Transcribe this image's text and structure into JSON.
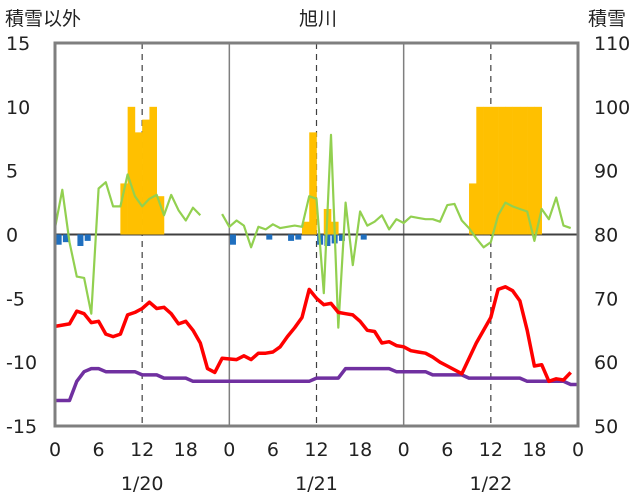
{
  "chart_data": {
    "type": "combo",
    "title": "旭川",
    "left_axis_label": "積雪以外",
    "right_axis_label": "積雪",
    "left_ylim": [
      -15,
      15
    ],
    "left_ticks": [
      "15",
      "10",
      "5",
      "0",
      "-5",
      "-10",
      "-15"
    ],
    "right_ylim": [
      50,
      110
    ],
    "right_ticks": [
      "110",
      "100",
      "90",
      "80",
      "70",
      "60",
      "50"
    ],
    "x_range_hours": [
      0,
      72
    ],
    "x_tick_labels": [
      "0",
      "6",
      "12",
      "18",
      "0",
      "6",
      "12",
      "18",
      "0",
      "6",
      "12",
      "18",
      "0"
    ],
    "date_labels": [
      {
        "hour": 12,
        "label": "1/20"
      },
      {
        "hour": 36,
        "label": "1/21"
      },
      {
        "hour": 60,
        "label": "1/22"
      }
    ],
    "grid": {
      "solid_day_lines": [
        24,
        48
      ],
      "dashed_noon_lines": [
        12,
        36,
        60
      ]
    },
    "colors": {
      "temperature": "#ff0000",
      "snowfall": "#ffc000",
      "precipitation": "#1f6fbf",
      "snow_depth": "#7030a0",
      "wind": "#92d050",
      "axis": "#7f7f7f",
      "zero_line": "#404040"
    },
    "snowfall_bars": [
      {
        "x": 9,
        "v": 4
      },
      {
        "x": 10,
        "v": 10
      },
      {
        "x": 11,
        "v": 8
      },
      {
        "x": 12,
        "v": 9
      },
      {
        "x": 13,
        "v": 10
      },
      {
        "x": 14,
        "v": 3
      },
      {
        "x": 34,
        "v": 1
      },
      {
        "x": 35,
        "v": 8
      },
      {
        "x": 37,
        "v": 2
      },
      {
        "x": 38,
        "v": 1
      },
      {
        "x": 57,
        "v": 4
      },
      {
        "x": 58,
        "v": 10
      },
      {
        "x": 59,
        "v": 10
      },
      {
        "x": 60,
        "v": 10
      },
      {
        "x": 61,
        "v": 10
      },
      {
        "x": 62,
        "v": 10
      },
      {
        "x": 63,
        "v": 10
      },
      {
        "x": 64,
        "v": 10
      },
      {
        "x": 65,
        "v": 10
      },
      {
        "x": 66,
        "v": 10
      }
    ],
    "precipitation_bars": [
      {
        "x": 0.5,
        "v": -0.8
      },
      {
        "x": 1.5,
        "v": -0.6
      },
      {
        "x": 3.5,
        "v": -0.9
      },
      {
        "x": 4.5,
        "v": -0.5
      },
      {
        "x": 24.5,
        "v": -0.8
      },
      {
        "x": 29.5,
        "v": -0.4
      },
      {
        "x": 32.5,
        "v": -0.5
      },
      {
        "x": 33.5,
        "v": -0.4
      },
      {
        "x": 36.5,
        "v": -0.8
      },
      {
        "x": 37.5,
        "v": -0.9
      },
      {
        "x": 38.5,
        "v": -0.7
      },
      {
        "x": 39.5,
        "v": -0.5
      },
      {
        "x": 42.5,
        "v": -0.4
      }
    ],
    "temperature": [
      [
        0,
        -7.2
      ],
      [
        2,
        -7.0
      ],
      [
        3,
        -6.0
      ],
      [
        4,
        -6.2
      ],
      [
        5,
        -6.9
      ],
      [
        6,
        -6.8
      ],
      [
        7,
        -7.8
      ],
      [
        8,
        -8.0
      ],
      [
        9,
        -7.8
      ],
      [
        10,
        -6.3
      ],
      [
        11,
        -6.1
      ],
      [
        12,
        -5.8
      ],
      [
        13,
        -5.3
      ],
      [
        14,
        -5.8
      ],
      [
        15,
        -5.7
      ],
      [
        16,
        -6.2
      ],
      [
        17,
        -7.0
      ],
      [
        18,
        -6.8
      ],
      [
        19,
        -7.5
      ],
      [
        20,
        -8.5
      ],
      [
        21,
        -10.5
      ],
      [
        22,
        -10.8
      ],
      [
        23,
        -9.7
      ],
      [
        25,
        -9.8
      ],
      [
        26,
        -9.5
      ],
      [
        27,
        -9.8
      ],
      [
        28,
        -9.3
      ],
      [
        29,
        -9.3
      ],
      [
        30,
        -9.2
      ],
      [
        31,
        -8.8
      ],
      [
        32,
        -8.0
      ],
      [
        33,
        -7.3
      ],
      [
        34,
        -6.5
      ],
      [
        35,
        -4.3
      ],
      [
        36,
        -5.0
      ],
      [
        37,
        -5.5
      ],
      [
        38,
        -5.4
      ],
      [
        39,
        -6.1
      ],
      [
        40,
        -6.2
      ],
      [
        41,
        -6.3
      ],
      [
        42,
        -6.8
      ],
      [
        43,
        -7.5
      ],
      [
        44,
        -7.6
      ],
      [
        45,
        -8.5
      ],
      [
        46,
        -8.4
      ],
      [
        47,
        -8.7
      ],
      [
        48,
        -8.8
      ],
      [
        49,
        -9.1
      ],
      [
        50,
        -9.2
      ],
      [
        51,
        -9.3
      ],
      [
        52,
        -9.6
      ],
      [
        53,
        -10.0
      ],
      [
        54,
        -10.3
      ],
      [
        56,
        -10.9
      ],
      [
        58,
        -8.5
      ],
      [
        60,
        -6.5
      ],
      [
        61,
        -4.3
      ],
      [
        62,
        -4.1
      ],
      [
        63,
        -4.4
      ],
      [
        64,
        -5.2
      ],
      [
        65,
        -7.5
      ],
      [
        66,
        -10.3
      ],
      [
        67,
        -10.2
      ],
      [
        68,
        -11.5
      ],
      [
        69,
        -11.3
      ],
      [
        70,
        -11.4
      ],
      [
        71,
        -10.8
      ]
    ],
    "wind": [
      [
        0,
        0.5
      ],
      [
        1,
        3.5
      ],
      [
        2,
        -0.6
      ],
      [
        3,
        -3.3
      ],
      [
        4,
        -3.4
      ],
      [
        5,
        -6.2
      ],
      [
        6,
        3.6
      ],
      [
        7,
        4.1
      ],
      [
        8,
        2.2
      ],
      [
        9,
        2.2
      ],
      [
        10,
        4.7
      ],
      [
        11,
        3.0
      ],
      [
        12,
        2.2
      ],
      [
        13,
        2.8
      ],
      [
        14,
        3.1
      ],
      [
        15,
        1.5
      ],
      [
        16,
        3.1
      ],
      [
        17,
        1.9
      ],
      [
        18,
        1.1
      ],
      [
        19,
        2.1
      ],
      [
        20,
        1.5
      ],
      [
        23,
        1.6
      ],
      [
        24,
        0.6
      ],
      [
        25,
        1.1
      ],
      [
        26,
        0.7
      ],
      [
        27,
        -1.0
      ],
      [
        28,
        0.6
      ],
      [
        29,
        0.4
      ],
      [
        30,
        0.8
      ],
      [
        31,
        0.5
      ],
      [
        32,
        0.6
      ],
      [
        33,
        0.7
      ],
      [
        34,
        0.6
      ],
      [
        35,
        3.0
      ],
      [
        36,
        2.8
      ],
      [
        37,
        -4.6
      ],
      [
        38,
        7.8
      ],
      [
        39,
        -7.3
      ],
      [
        40,
        2.5
      ],
      [
        41,
        -2.4
      ],
      [
        42,
        1.8
      ],
      [
        43,
        0.7
      ],
      [
        44,
        1.0
      ],
      [
        45,
        1.5
      ],
      [
        46,
        0.4
      ],
      [
        47,
        1.2
      ],
      [
        48,
        0.9
      ],
      [
        49,
        1.4
      ],
      [
        50,
        1.3
      ],
      [
        51,
        1.2
      ],
      [
        52,
        1.2
      ],
      [
        53,
        1.0
      ],
      [
        54,
        2.3
      ],
      [
        55,
        2.4
      ],
      [
        56,
        1.1
      ],
      [
        57,
        0.5
      ],
      [
        58,
        -0.3
      ],
      [
        59,
        -1.0
      ],
      [
        60,
        -0.6
      ],
      [
        61,
        1.5
      ],
      [
        62,
        2.5
      ],
      [
        63,
        2.2
      ],
      [
        64,
        2.0
      ],
      [
        65,
        1.8
      ],
      [
        66,
        -0.5
      ],
      [
        67,
        2.0
      ],
      [
        68,
        1.2
      ],
      [
        69,
        2.9
      ],
      [
        70,
        0.7
      ],
      [
        71,
        0.5
      ]
    ],
    "snow_depth": [
      [
        0,
        54
      ],
      [
        2,
        54
      ],
      [
        3,
        57
      ],
      [
        4,
        58.5
      ],
      [
        5,
        59
      ],
      [
        6,
        59
      ],
      [
        7,
        58.5
      ],
      [
        11,
        58.5
      ],
      [
        12,
        58
      ],
      [
        14,
        58
      ],
      [
        15,
        57.5
      ],
      [
        18,
        57.5
      ],
      [
        19,
        57
      ],
      [
        35,
        57
      ],
      [
        36,
        57.5
      ],
      [
        39,
        57.5
      ],
      [
        40,
        59
      ],
      [
        46,
        59
      ],
      [
        47,
        58.5
      ],
      [
        51,
        58.5
      ],
      [
        52,
        58
      ],
      [
        56,
        58
      ],
      [
        57,
        57.5
      ],
      [
        64,
        57.5
      ],
      [
        65,
        57
      ],
      [
        70,
        57
      ],
      [
        71,
        56.5
      ],
      [
        72,
        56.5
      ]
    ]
  }
}
